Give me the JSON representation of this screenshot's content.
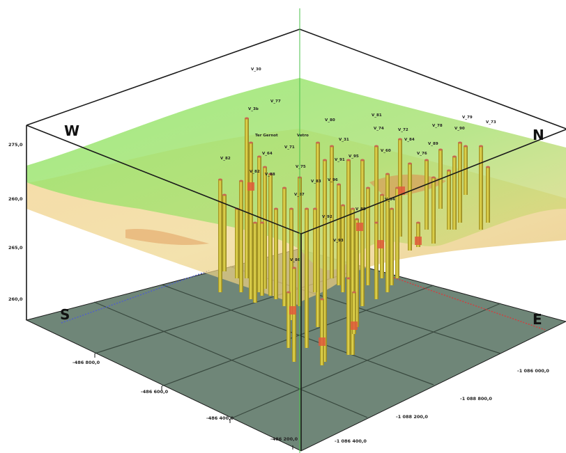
{
  "compass": {
    "west": "W",
    "north": "N",
    "south": "S",
    "east": "E"
  },
  "z_axis_labels": [
    "275,0",
    "260,0",
    "265,0",
    "260,0"
  ],
  "x_axis_labels": [
    "-486 800,0",
    "-486 600,0",
    "-486 400,0",
    "-486 200,0"
  ],
  "y_axis_labels": [
    "-1 086 000,0",
    "-1 088 800,0",
    "-1 088 200,0",
    "-1 086 400,0"
  ],
  "well_labels": [
    "V_30",
    "V_3b",
    "V_77",
    "V_80",
    "V_81",
    "V_72",
    "V_78",
    "V_79",
    "V_73",
    "Ter Gernot",
    "Vetro",
    "V_31",
    "V_74",
    "V_76",
    "V_71",
    "V_75",
    "V_91",
    "V_94",
    "V_92",
    "V_93",
    "V_95",
    "V_82",
    "V_64",
    "V_83",
    "V_60",
    "V_84",
    "V_82",
    "V_85",
    "V_86",
    "V_87",
    "V_88",
    "V_89",
    "V_90",
    "V_96"
  ],
  "colors": {
    "upper_surface": "#7ee06a",
    "lower_surface": "#e8c86a",
    "base_plane": "#6f8678",
    "well_casing": "#d4c43a",
    "well_marker": "#e0503c",
    "box_edge": "#1a1a1a"
  }
}
